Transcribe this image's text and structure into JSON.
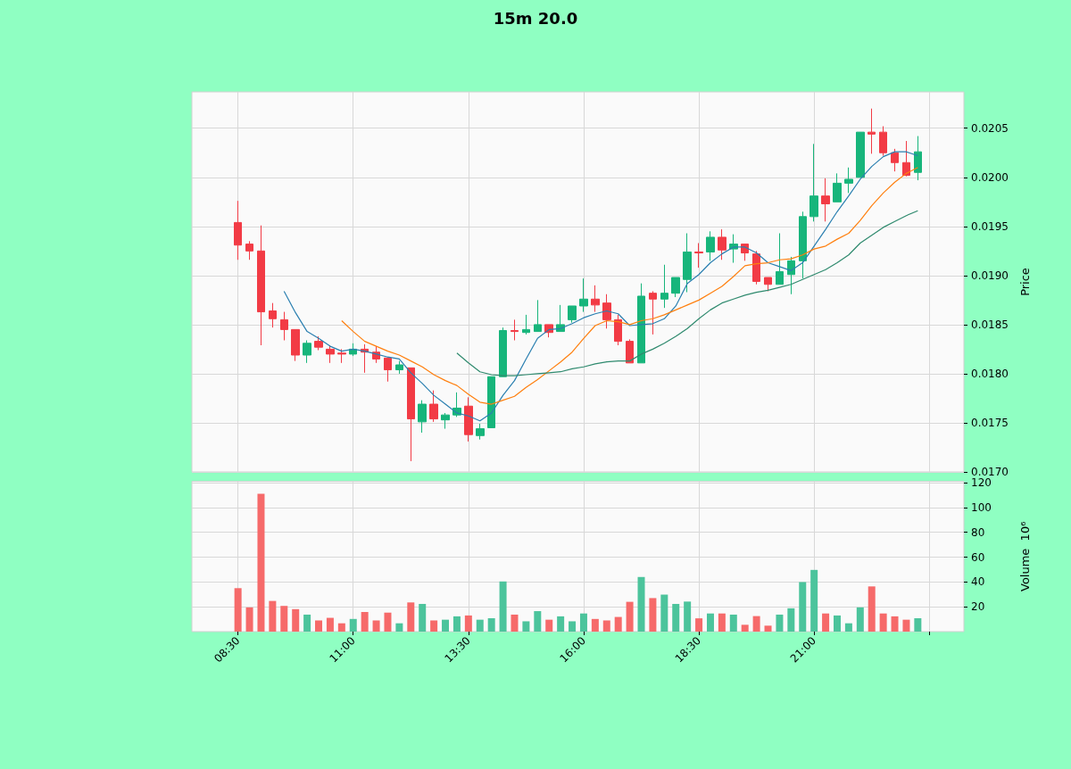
{
  "chart_data": [
    {
      "type": "candlestick",
      "title": "15m 20.0",
      "ylabel": "Price",
      "x": [
        8.5,
        8.75,
        9,
        9.25,
        9.5,
        9.75,
        10,
        10.25,
        10.5,
        10.75,
        11,
        11.25,
        11.5,
        11.75,
        12,
        12.25,
        12.5,
        12.75,
        13,
        13.25,
        13.5,
        13.75,
        14,
        14.25,
        14.5,
        14.75,
        15,
        15.25,
        15.5,
        15.75,
        16,
        16.25,
        16.5,
        16.75,
        17,
        17.25,
        17.5,
        17.75,
        18,
        18.25,
        18.5,
        18.75,
        19,
        19.25,
        19.5,
        19.75,
        20,
        20.25,
        20.5,
        20.75,
        21,
        21.25,
        21.5,
        21.75,
        22,
        22.25,
        22.5,
        22.75,
        23,
        23.25
      ],
      "ohlc": [
        [
          0.01954,
          0.01976,
          0.01916,
          0.01931
        ],
        [
          0.01932,
          0.01935,
          0.01916,
          0.01925
        ],
        [
          0.01925,
          0.01951,
          0.01829,
          0.01863
        ],
        [
          0.01864,
          0.01872,
          0.01847,
          0.01856
        ],
        [
          0.01855,
          0.01863,
          0.01834,
          0.01845
        ],
        [
          0.01845,
          0.01845,
          0.01813,
          0.01819
        ],
        [
          0.01819,
          0.01834,
          0.01811,
          0.01831
        ],
        [
          0.01833,
          0.01838,
          0.01824,
          0.01827
        ],
        [
          0.01825,
          0.01829,
          0.01811,
          0.0182
        ],
        [
          0.01821,
          0.01825,
          0.01811,
          0.0182
        ],
        [
          0.0182,
          0.01831,
          0.01818,
          0.01825
        ],
        [
          0.01825,
          0.0183,
          0.01801,
          0.01822
        ],
        [
          0.01822,
          0.01828,
          0.01811,
          0.01815
        ],
        [
          0.01816,
          0.01817,
          0.01792,
          0.01804
        ],
        [
          0.01804,
          0.01813,
          0.018,
          0.01809
        ],
        [
          0.01806,
          0.01806,
          0.01711,
          0.01754
        ],
        [
          0.01751,
          0.01773,
          0.0174,
          0.01769
        ],
        [
          0.01769,
          0.01783,
          0.01751,
          0.01754
        ],
        [
          0.01753,
          0.0176,
          0.01744,
          0.01758
        ],
        [
          0.01758,
          0.01781,
          0.01756,
          0.01765
        ],
        [
          0.01767,
          0.01776,
          0.01731,
          0.01738
        ],
        [
          0.01737,
          0.01749,
          0.01733,
          0.01744
        ],
        [
          0.01745,
          0.01797,
          0.01745,
          0.01797
        ],
        [
          0.01797,
          0.01847,
          0.01797,
          0.01844
        ],
        [
          0.01844,
          0.01855,
          0.01834,
          0.01843
        ],
        [
          0.01842,
          0.0186,
          0.0184,
          0.01845
        ],
        [
          0.01843,
          0.01875,
          0.01843,
          0.0185
        ],
        [
          0.0185,
          0.0185,
          0.01837,
          0.01842
        ],
        [
          0.01843,
          0.0187,
          0.01843,
          0.0185
        ],
        [
          0.01855,
          0.01869,
          0.01852,
          0.01869
        ],
        [
          0.01869,
          0.01897,
          0.01863,
          0.01876
        ],
        [
          0.01876,
          0.0189,
          0.01863,
          0.0187
        ],
        [
          0.01872,
          0.01881,
          0.01846,
          0.01855
        ],
        [
          0.01855,
          0.0186,
          0.01829,
          0.01833
        ],
        [
          0.01833,
          0.01835,
          0.01811,
          0.01811
        ],
        [
          0.01811,
          0.01892,
          0.01811,
          0.01879
        ],
        [
          0.01882,
          0.01884,
          0.0184,
          0.01876
        ],
        [
          0.01876,
          0.01911,
          0.01867,
          0.01882
        ],
        [
          0.01882,
          0.01898,
          0.01878,
          0.01898
        ],
        [
          0.01896,
          0.01943,
          0.01883,
          0.01924
        ],
        [
          0.01924,
          0.01933,
          0.01908,
          0.01923
        ],
        [
          0.01924,
          0.01945,
          0.01915,
          0.01939
        ],
        [
          0.01939,
          0.01947,
          0.01916,
          0.01926
        ],
        [
          0.01927,
          0.01942,
          0.01913,
          0.01932
        ],
        [
          0.01932,
          0.01932,
          0.01915,
          0.01923
        ],
        [
          0.01922,
          0.01925,
          0.01891,
          0.01894
        ],
        [
          0.01898,
          0.01898,
          0.01884,
          0.01891
        ],
        [
          0.01891,
          0.01943,
          0.01891,
          0.01904
        ],
        [
          0.01901,
          0.01919,
          0.01881,
          0.01915
        ],
        [
          0.01915,
          0.01965,
          0.01897,
          0.0196
        ],
        [
          0.0196,
          0.02034,
          0.01955,
          0.01981
        ],
        [
          0.01981,
          0.01999,
          0.01955,
          0.01973
        ],
        [
          0.01975,
          0.02004,
          0.01975,
          0.01994
        ],
        [
          0.01994,
          0.0201,
          0.01984,
          0.01998
        ],
        [
          0.02,
          0.02046,
          0.02,
          0.02046
        ],
        [
          0.02046,
          0.0207,
          0.02024,
          0.02044
        ],
        [
          0.02046,
          0.02052,
          0.02022,
          0.02025
        ],
        [
          0.02025,
          0.02029,
          0.02006,
          0.02015
        ],
        [
          0.02015,
          0.02037,
          0.02001,
          0.02002
        ],
        [
          0.02005,
          0.02042,
          0.01997,
          0.02026
        ]
      ],
      "colors": [
        "#f23b45",
        "#f23b45",
        "#f23b45",
        "#f23b45",
        "#f23b45",
        "#f23b45",
        "#17b57b",
        "#f23b45",
        "#f23b45",
        "#f23b45",
        "#17b57b",
        "#f23b45",
        "#f23b45",
        "#f23b45",
        "#17b57b",
        "#f23b45",
        "#17b57b",
        "#f23b45",
        "#17b57b",
        "#17b57b",
        "#f23b45",
        "#17b57b",
        "#17b57b",
        "#17b57b",
        "#f23b45",
        "#17b57b",
        "#17b57b",
        "#f23b45",
        "#17b57b",
        "#17b57b",
        "#17b57b",
        "#f23b45",
        "#f23b45",
        "#f23b45",
        "#f23b45",
        "#17b57b",
        "#f23b45",
        "#17b57b",
        "#17b57b",
        "#17b57b",
        "#f23b45",
        "#17b57b",
        "#f23b45",
        "#17b57b",
        "#f23b45",
        "#f23b45",
        "#f23b45",
        "#17b57b",
        "#17b57b",
        "#17b57b",
        "#17b57b",
        "#f23b45",
        "#17b57b",
        "#17b57b",
        "#17b57b",
        "#f23b45",
        "#f23b45",
        "#f23b45",
        "#f23b45",
        "#17b57b"
      ],
      "series": [
        {
          "type": "line",
          "color": "#2a7fb0",
          "values": [
            null,
            null,
            null,
            null,
            0.01884,
            0.01862,
            0.01843,
            0.01836,
            0.01828,
            0.01823,
            0.01825,
            0.01823,
            0.0182,
            0.01817,
            0.01815,
            0.01801,
            0.0179,
            0.01778,
            0.01769,
            0.0176,
            0.01757,
            0.01752,
            0.0176,
            0.01778,
            0.01793,
            0.01815,
            0.01836,
            0.01845,
            0.01846,
            0.01851,
            0.01857,
            0.01861,
            0.01864,
            0.01861,
            0.01849,
            0.0185,
            0.01851,
            0.01856,
            0.01869,
            0.01892,
            0.01901,
            0.01913,
            0.01922,
            0.01929,
            0.01929,
            0.01923,
            0.01913,
            0.01909,
            0.01905,
            0.01913,
            0.0193,
            0.01947,
            0.01965,
            0.01981,
            0.01998,
            0.02011,
            0.02021,
            0.02026,
            0.02026,
            0.02022
          ]
        },
        {
          "type": "line",
          "color": "#ff7f0e",
          "values": [
            null,
            null,
            null,
            null,
            null,
            null,
            null,
            null,
            null,
            0.01854,
            0.01843,
            0.01833,
            0.01828,
            0.01823,
            0.01819,
            0.01813,
            0.01807,
            0.01799,
            0.01793,
            0.01788,
            0.01779,
            0.01771,
            0.01769,
            0.01773,
            0.01777,
            0.01786,
            0.01794,
            0.01803,
            0.01812,
            0.01822,
            0.01836,
            0.01849,
            0.01854,
            0.01853,
            0.0185,
            0.01854,
            0.01856,
            0.0186,
            0.01865,
            0.0187,
            0.01875,
            0.01882,
            0.01889,
            0.01899,
            0.0191,
            0.01912,
            0.01913,
            0.01916,
            0.01917,
            0.01921,
            0.01927,
            0.0193,
            0.01937,
            0.01943,
            0.01956,
            0.01971,
            0.01984,
            0.01995,
            0.02004,
            0.0201
          ]
        },
        {
          "type": "line",
          "color": "#2f8a6e",
          "values": [
            null,
            null,
            null,
            null,
            null,
            null,
            null,
            null,
            null,
            null,
            null,
            null,
            null,
            null,
            null,
            null,
            null,
            null,
            null,
            0.01821,
            0.01811,
            0.01802,
            0.01799,
            0.01798,
            0.01798,
            0.01799,
            0.018,
            0.01801,
            0.01802,
            0.01805,
            0.01807,
            0.0181,
            0.01812,
            0.01813,
            0.01813,
            0.0182,
            0.01825,
            0.01831,
            0.01838,
            0.01846,
            0.01856,
            0.01865,
            0.01872,
            0.01876,
            0.0188,
            0.01883,
            0.01885,
            0.01888,
            0.01891,
            0.01896,
            0.01901,
            0.01906,
            0.01913,
            0.01921,
            0.01933,
            0.01941,
            0.01949,
            0.01955,
            0.01961,
            0.01966
          ]
        }
      ],
      "xlim": [
        7.5,
        24.25
      ],
      "xticks": [
        {
          "value": 8.5,
          "label": null
        },
        {
          "value": 11,
          "label": null
        },
        {
          "value": 13.5,
          "label": null
        },
        {
          "value": 16,
          "label": null
        },
        {
          "value": 18.5,
          "label": null
        },
        {
          "value": 21,
          "label": null
        },
        {
          "value": 23.5,
          "label": null
        }
      ],
      "ylim": [
        0.017,
        0.02087
      ],
      "yticks": [
        {
          "value": 0.017,
          "label": "0.0170"
        },
        {
          "value": 0.0175,
          "label": "0.0175"
        },
        {
          "value": 0.018,
          "label": "0.0180"
        },
        {
          "value": 0.0185,
          "label": "0.0185"
        },
        {
          "value": 0.019,
          "label": "0.0190"
        },
        {
          "value": 0.0195,
          "label": "0.0195"
        },
        {
          "value": 0.02,
          "label": "0.0200"
        },
        {
          "value": 0.0205,
          "label": "0.0205"
        }
      ],
      "grid": true,
      "tick_labels": "y"
    },
    {
      "type": "bar",
      "ylabel": "Volume  10⁶",
      "x": [
        8.5,
        8.75,
        9,
        9.25,
        9.5,
        9.75,
        10,
        10.25,
        10.5,
        10.75,
        11,
        11.25,
        11.5,
        11.75,
        12,
        12.25,
        12.5,
        12.75,
        13,
        13.25,
        13.5,
        13.75,
        14,
        14.25,
        14.5,
        14.75,
        15,
        15.25,
        15.5,
        15.75,
        16,
        16.25,
        16.5,
        16.75,
        17,
        17.25,
        17.5,
        17.75,
        18,
        18.25,
        18.5,
        18.75,
        19,
        19.25,
        19.5,
        19.75,
        20,
        20.25,
        20.5,
        20.75,
        21,
        21.25,
        21.5,
        21.75,
        22,
        22.25,
        22.5,
        22.75,
        23,
        23.25
      ],
      "values": [
        35,
        19.5,
        111,
        24.7,
        20.7,
        18.1,
        13.7,
        9,
        11.1,
        6.7,
        10.2,
        15.8,
        9,
        15.3,
        6.7,
        23.5,
        22.3,
        9,
        9.6,
        12.3,
        13,
        9.6,
        10.8,
        40.4,
        13.7,
        8.3,
        16.5,
        9.6,
        12.3,
        8.3,
        14.6,
        10.2,
        9,
        11.8,
        24,
        44,
        27,
        29.8,
        22.3,
        24.2,
        10.7,
        14.6,
        14.6,
        13.7,
        5.5,
        12.5,
        4.8,
        13.7,
        18.8,
        39.9,
        49.7,
        14.6,
        13,
        6.7,
        19.5,
        36.4,
        14.6,
        12.3,
        9.6,
        10.8
      ],
      "colors": [
        "#f66a6a",
        "#f66a6a",
        "#f66a6a",
        "#f66a6a",
        "#f66a6a",
        "#f66a6a",
        "#4cc49c",
        "#f66a6a",
        "#f66a6a",
        "#f66a6a",
        "#4cc49c",
        "#f66a6a",
        "#f66a6a",
        "#f66a6a",
        "#4cc49c",
        "#f66a6a",
        "#4cc49c",
        "#f66a6a",
        "#4cc49c",
        "#4cc49c",
        "#f66a6a",
        "#4cc49c",
        "#4cc49c",
        "#4cc49c",
        "#f66a6a",
        "#4cc49c",
        "#4cc49c",
        "#f66a6a",
        "#4cc49c",
        "#4cc49c",
        "#4cc49c",
        "#f66a6a",
        "#f66a6a",
        "#f66a6a",
        "#f66a6a",
        "#4cc49c",
        "#f66a6a",
        "#4cc49c",
        "#4cc49c",
        "#4cc49c",
        "#f66a6a",
        "#4cc49c",
        "#f66a6a",
        "#4cc49c",
        "#f66a6a",
        "#f66a6a",
        "#f66a6a",
        "#4cc49c",
        "#4cc49c",
        "#4cc49c",
        "#4cc49c",
        "#f66a6a",
        "#4cc49c",
        "#4cc49c",
        "#4cc49c",
        "#f66a6a",
        "#f66a6a",
        "#f66a6a",
        "#f66a6a",
        "#4cc49c"
      ],
      "xlim": [
        7.5,
        24.25
      ],
      "xticks": [
        {
          "value": 8.5,
          "label": "08:30"
        },
        {
          "value": 11,
          "label": "11:00"
        },
        {
          "value": 13.5,
          "label": "13:30"
        },
        {
          "value": 16,
          "label": "16:00"
        },
        {
          "value": 18.5,
          "label": "18:30"
        },
        {
          "value": 21,
          "label": "21:00"
        },
        {
          "value": 23.5,
          "label": null
        }
      ],
      "ylim": [
        0,
        121
      ],
      "yticks": [
        20,
        40,
        60,
        80,
        100,
        120
      ],
      "grid": true
    }
  ]
}
